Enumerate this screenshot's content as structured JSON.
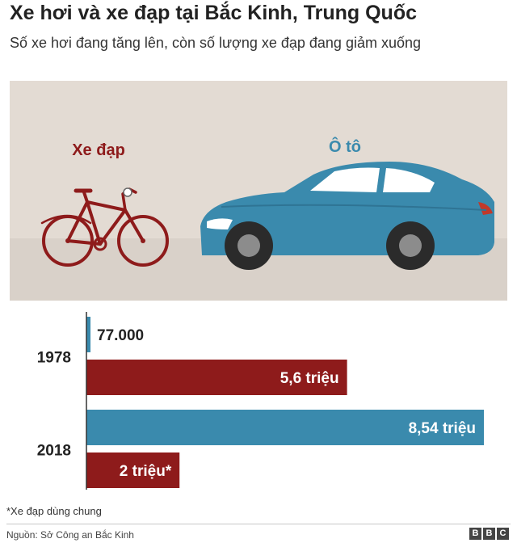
{
  "title": "Xe hơi và xe đạp tại Bắc Kinh, Trung Quốc",
  "subtitle": "Số xe hơi đang tăng lên, còn số lượng xe đạp đang giảm xuống",
  "illustration": {
    "bike_label": "Xe đạp",
    "car_label": "Ô tô"
  },
  "colors": {
    "car": "#3a8aad",
    "bike": "#8e1b1b",
    "background_panel": "#e3dbd3",
    "ground": "#d9d1c9"
  },
  "chart_data": {
    "type": "bar",
    "orientation": "horizontal",
    "title": "",
    "categories": [
      "1978",
      "2018"
    ],
    "xlim": [
      0,
      8.54
    ],
    "series": [
      {
        "name": "Ô tô",
        "color": "#3a8aad",
        "values": [
          0.077,
          8.54
        ],
        "labels": [
          "77.000",
          "8,54 triệu"
        ]
      },
      {
        "name": "Xe đạp",
        "color": "#8e1b1b",
        "values": [
          5.6,
          2.0
        ],
        "labels": [
          "5,6 triệu",
          "2 triệu*"
        ]
      }
    ],
    "unit": "triệu"
  },
  "footnote": "*Xe đạp dùng chung",
  "source": "Nguồn: Sở Công an Bắc Kinh",
  "logo_letters": [
    "B",
    "B",
    "C"
  ]
}
